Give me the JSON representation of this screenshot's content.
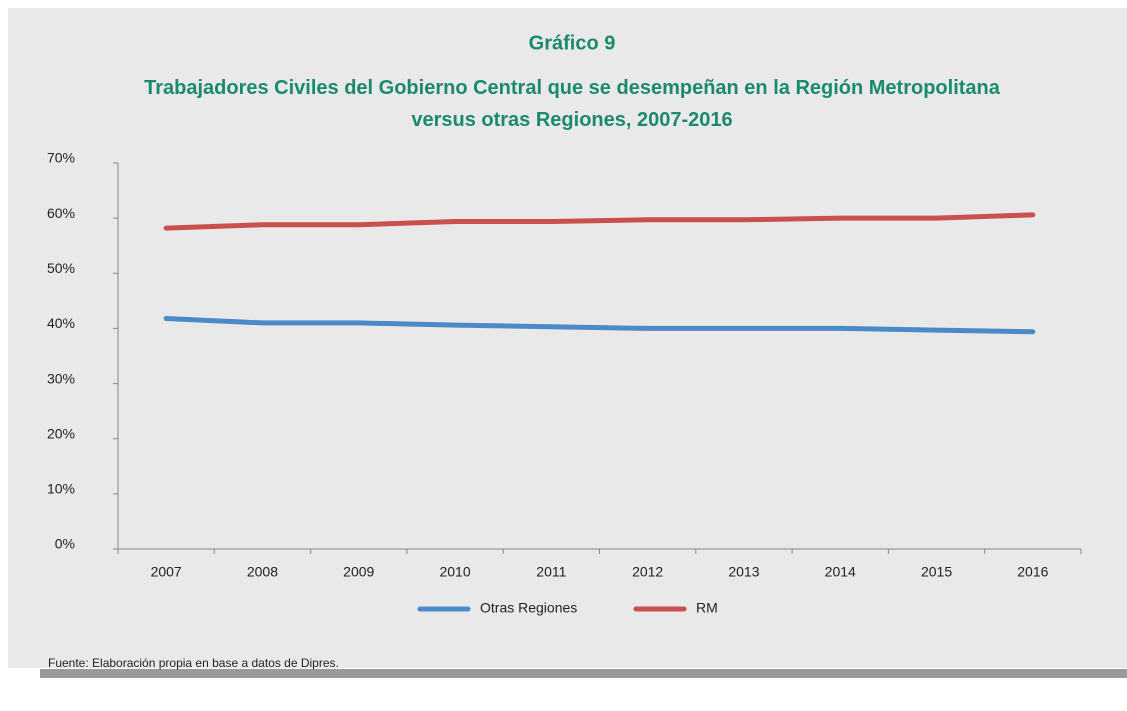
{
  "chart_data": {
    "type": "line",
    "title": "Gráfico 9",
    "subtitle": "Trabajadores Civiles del Gobierno Central que se desempeñan en la Región Metropolitana versus otras Regiones, 2007-2016",
    "categories": [
      "2007",
      "2008",
      "2009",
      "2010",
      "2011",
      "2012",
      "2013",
      "2014",
      "2015",
      "2016"
    ],
    "series": [
      {
        "name": "Otras Regiones",
        "color": "#4a8ac9",
        "values": [
          41.8,
          41.0,
          41.0,
          40.6,
          40.3,
          40.0,
          40.0,
          40.0,
          39.7,
          39.4
        ]
      },
      {
        "name": "RM",
        "color": "#c9504c",
        "values": [
          58.2,
          58.8,
          58.8,
          59.4,
          59.4,
          59.7,
          59.7,
          60.0,
          60.0,
          60.6
        ]
      }
    ],
    "ylim": [
      0,
      70
    ],
    "yticks": [
      {
        "value": 0,
        "label": "0%"
      },
      {
        "value": 10,
        "label": "10%"
      },
      {
        "value": 20,
        "label": "20%"
      },
      {
        "value": 30,
        "label": "30%"
      },
      {
        "value": 40,
        "label": "40%"
      },
      {
        "value": 50,
        "label": "50%"
      },
      {
        "value": 60,
        "label": "60%"
      },
      {
        "value": 70,
        "label": "70%"
      }
    ],
    "legend": "bottom",
    "source": "Fuente: Elaboración propia en base a datos de Dipres."
  }
}
